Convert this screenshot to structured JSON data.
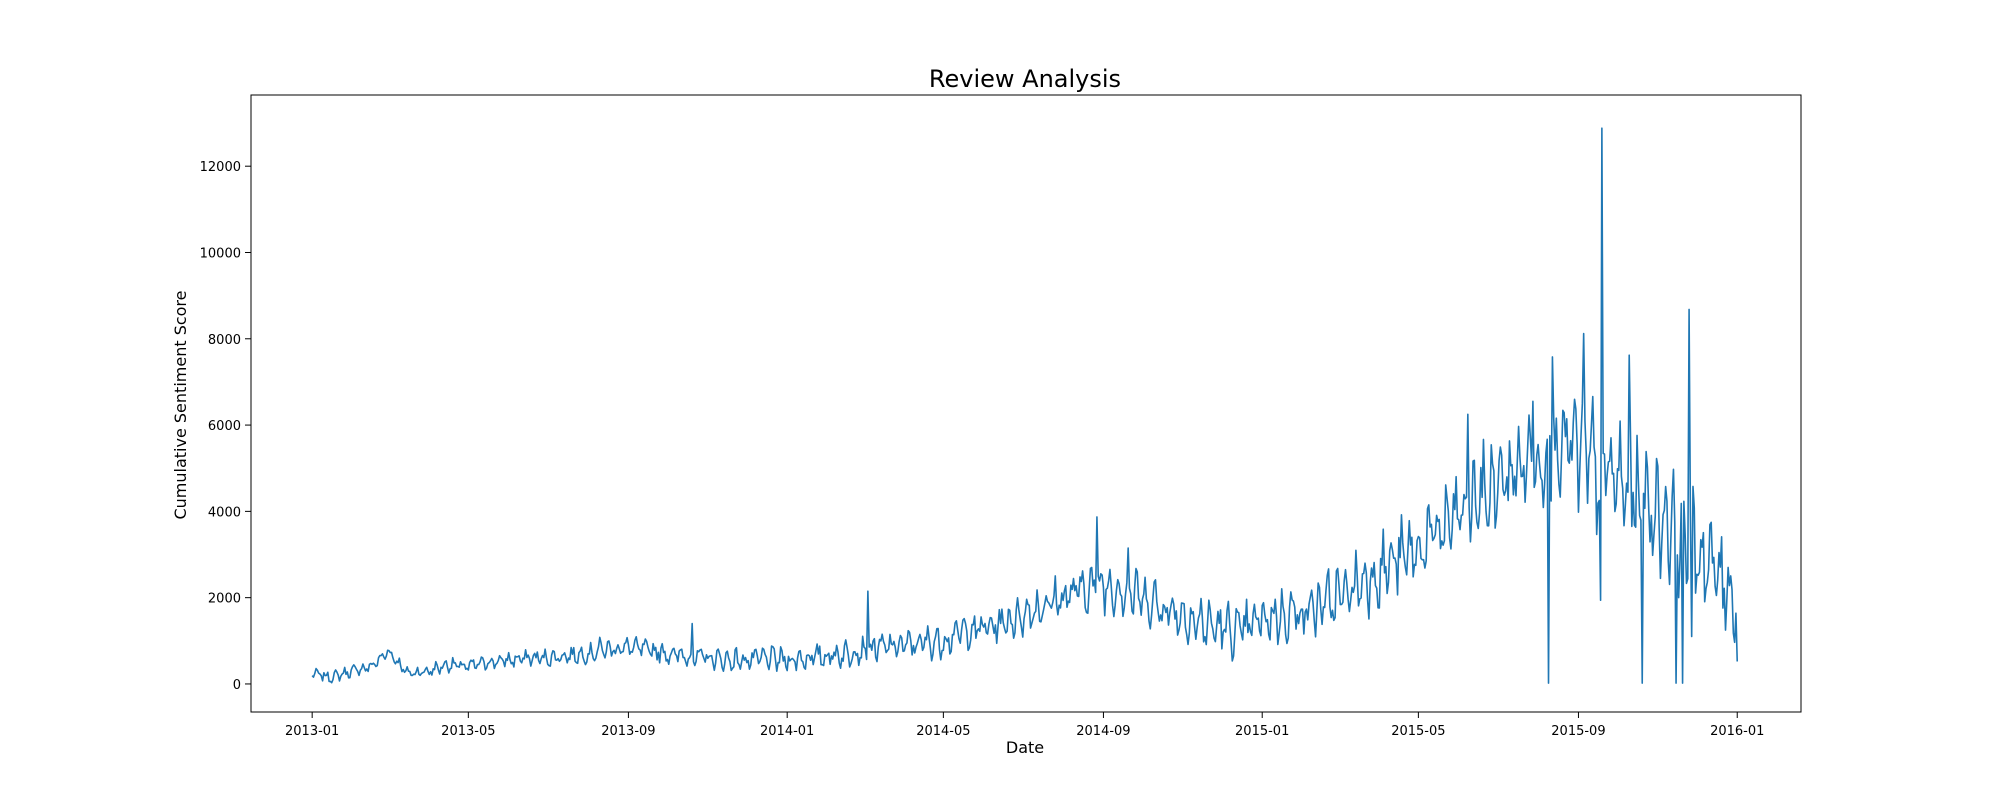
{
  "chart_data": {
    "type": "line",
    "title": "Review Analysis",
    "xlabel": "Date",
    "ylabel": "Cumulative Sentiment Score",
    "xlim": [
      "2012-11-15",
      "2016-02-19"
    ],
    "ylim": [
      -650,
      13650
    ],
    "x_ticks": [
      "2013-01",
      "2013-05",
      "2013-09",
      "2014-01",
      "2014-05",
      "2014-09",
      "2015-01",
      "2015-05",
      "2015-09",
      "2016-01"
    ],
    "y_ticks": [
      0,
      2000,
      4000,
      6000,
      8000,
      10000,
      12000
    ],
    "grid": false,
    "legend": "none",
    "color": "#1f77b4",
    "series": [
      {
        "points": [
          [
            "2013-01-01",
            250
          ],
          [
            "2013-01-15",
            150
          ],
          [
            "2013-02-01",
            300
          ],
          [
            "2013-02-15",
            400
          ],
          [
            "2013-03-01",
            750
          ],
          [
            "2013-03-15",
            250
          ],
          [
            "2013-04-01",
            300
          ],
          [
            "2013-04-15",
            450
          ],
          [
            "2013-05-01",
            400
          ],
          [
            "2013-05-15",
            500
          ],
          [
            "2013-06-01",
            550
          ],
          [
            "2013-06-15",
            600
          ],
          [
            "2013-07-01",
            600
          ],
          [
            "2013-07-15",
            650
          ],
          [
            "2013-08-01",
            700
          ],
          [
            "2013-08-15",
            800
          ],
          [
            "2013-09-01",
            850
          ],
          [
            "2013-09-15",
            800
          ],
          [
            "2013-10-01",
            700
          ],
          [
            "2013-10-15",
            650
          ],
          [
            "2013-11-01",
            600
          ],
          [
            "2013-11-15",
            550
          ],
          [
            "2013-12-01",
            550
          ],
          [
            "2013-12-15",
            600
          ],
          [
            "2014-01-01",
            550
          ],
          [
            "2014-01-15",
            600
          ],
          [
            "2014-02-01",
            650
          ],
          [
            "2014-02-15",
            700
          ],
          [
            "2014-03-01",
            800
          ],
          [
            "2014-03-15",
            850
          ],
          [
            "2014-04-01",
            900
          ],
          [
            "2014-04-15",
            950
          ],
          [
            "2014-05-01",
            1000
          ],
          [
            "2014-05-15",
            1200
          ],
          [
            "2014-06-01",
            1300
          ],
          [
            "2014-06-15",
            1400
          ],
          [
            "2014-07-01",
            1600
          ],
          [
            "2014-07-15",
            1800
          ],
          [
            "2014-08-01",
            2000
          ],
          [
            "2014-08-15",
            2200
          ],
          [
            "2014-09-01",
            2300
          ],
          [
            "2014-09-15",
            2200
          ],
          [
            "2014-10-01",
            2000
          ],
          [
            "2014-10-15",
            1800
          ],
          [
            "2014-11-01",
            1600
          ],
          [
            "2014-11-15",
            1400
          ],
          [
            "2014-12-01",
            1300
          ],
          [
            "2014-12-15",
            1200
          ],
          [
            "2015-01-01",
            1500
          ],
          [
            "2015-01-15",
            1600
          ],
          [
            "2015-02-01",
            1700
          ],
          [
            "2015-02-15",
            1800
          ],
          [
            "2015-03-01",
            2000
          ],
          [
            "2015-03-15",
            2300
          ],
          [
            "2015-04-01",
            2600
          ],
          [
            "2015-04-15",
            2900
          ],
          [
            "2015-05-01",
            3100
          ],
          [
            "2015-05-15",
            3500
          ],
          [
            "2015-06-01",
            3900
          ],
          [
            "2015-06-15",
            4300
          ],
          [
            "2015-07-01",
            4600
          ],
          [
            "2015-07-15",
            5000
          ],
          [
            "2015-08-01",
            5300
          ],
          [
            "2015-08-15",
            5600
          ],
          [
            "2015-09-01",
            5400
          ],
          [
            "2015-09-15",
            5000
          ],
          [
            "2015-10-01",
            4700
          ],
          [
            "2015-10-15",
            4400
          ],
          [
            "2015-11-01",
            4000
          ],
          [
            "2015-11-15",
            3600
          ],
          [
            "2015-12-01",
            3100
          ],
          [
            "2015-12-15",
            2600
          ],
          [
            "2016-01-01",
            2000
          ]
        ],
        "noise_envelope": [
          [
            "2013-01-01",
            120
          ],
          [
            "2013-06-01",
            180
          ],
          [
            "2014-01-01",
            280
          ],
          [
            "2014-06-01",
            400
          ],
          [
            "2014-09-01",
            600
          ],
          [
            "2015-01-01",
            600
          ],
          [
            "2015-05-01",
            900
          ],
          [
            "2015-08-01",
            1300
          ],
          [
            "2015-10-01",
            1500
          ],
          [
            "2016-01-01",
            1100
          ]
        ],
        "spikes": [
          [
            "2013-02-28",
            780
          ],
          [
            "2013-08-10",
            1080
          ],
          [
            "2013-10-20",
            1400
          ],
          [
            "2014-03-04",
            2150
          ],
          [
            "2014-08-27",
            3870
          ],
          [
            "2014-09-20",
            3150
          ],
          [
            "2015-06-08",
            6250
          ],
          [
            "2015-07-28",
            6550
          ],
          [
            "2015-08-09",
            20
          ],
          [
            "2015-08-12",
            7580
          ],
          [
            "2015-09-05",
            8120
          ],
          [
            "2015-09-19",
            12880
          ],
          [
            "2015-09-18",
            1940
          ],
          [
            "2015-10-10",
            7620
          ],
          [
            "2015-10-20",
            20
          ],
          [
            "2015-11-15",
            20
          ],
          [
            "2015-11-20",
            20
          ],
          [
            "2015-11-25",
            8680
          ],
          [
            "2015-11-27",
            1100
          ],
          [
            "2016-01-01",
            520
          ]
        ]
      }
    ]
  }
}
